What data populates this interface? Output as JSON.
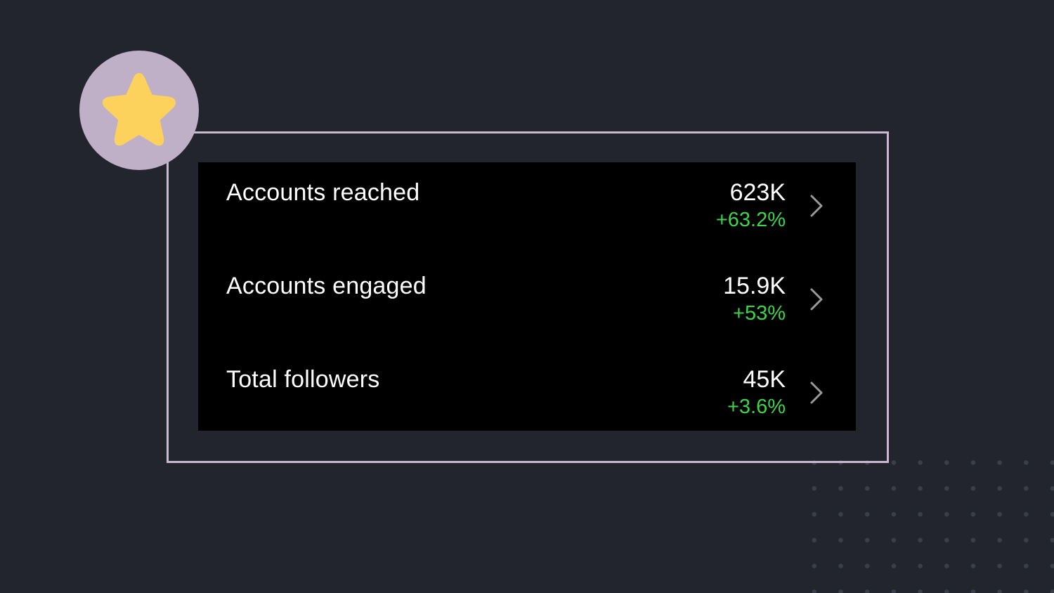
{
  "badge": {
    "icon": "star-icon",
    "background_color": "#bfb0c8",
    "icon_color": "#fdd25c"
  },
  "frame": {
    "border_color": "#c9b8d0"
  },
  "colors": {
    "background": "#22242e",
    "panel": "#000000",
    "positive": "#3ed34c",
    "text": "#ffffff",
    "chevron": "#9a9a9a"
  },
  "metrics": [
    {
      "label": "Accounts reached",
      "value": "623K",
      "change": "+63.2%",
      "icon": "chevron-right-icon"
    },
    {
      "label": "Accounts engaged",
      "value": "15.9K",
      "change": "+53%",
      "icon": "chevron-right-icon"
    },
    {
      "label": "Total followers",
      "value": "45K",
      "change": "+3.6%",
      "icon": "chevron-right-icon"
    }
  ]
}
